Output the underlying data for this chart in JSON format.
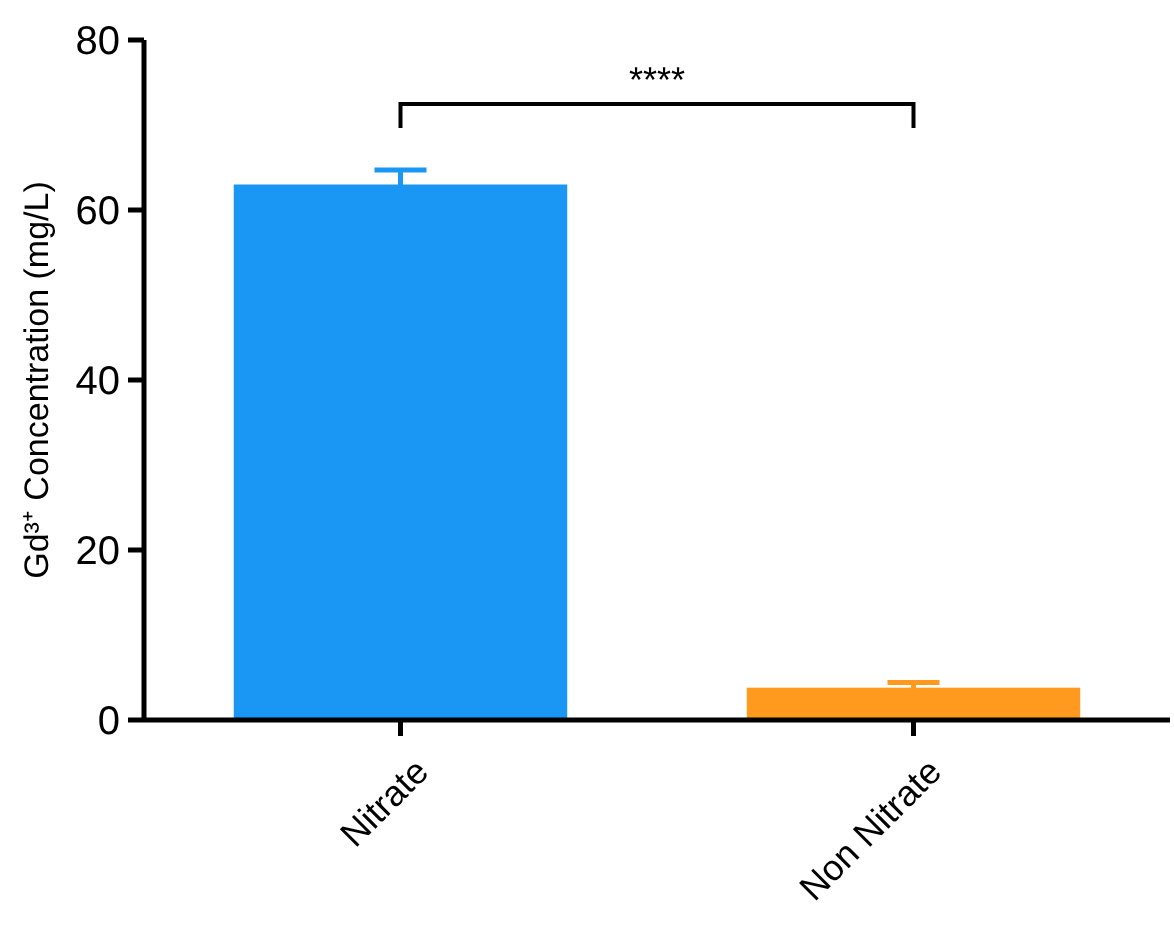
{
  "chart_data": {
    "type": "bar",
    "ylabel": "Gd³⁺ Concentration (mg/L)",
    "categories": [
      "Nitrate",
      "Non Nitrate"
    ],
    "values": [
      63,
      3.8
    ],
    "colors": [
      "#1a96f5",
      "#ff9a1f"
    ],
    "errors": [
      1.7,
      0.6
    ],
    "ylim": [
      0,
      80
    ],
    "yticks": [
      0,
      20,
      40,
      60,
      80
    ],
    "grid": false,
    "annotations": [
      "****"
    ]
  }
}
